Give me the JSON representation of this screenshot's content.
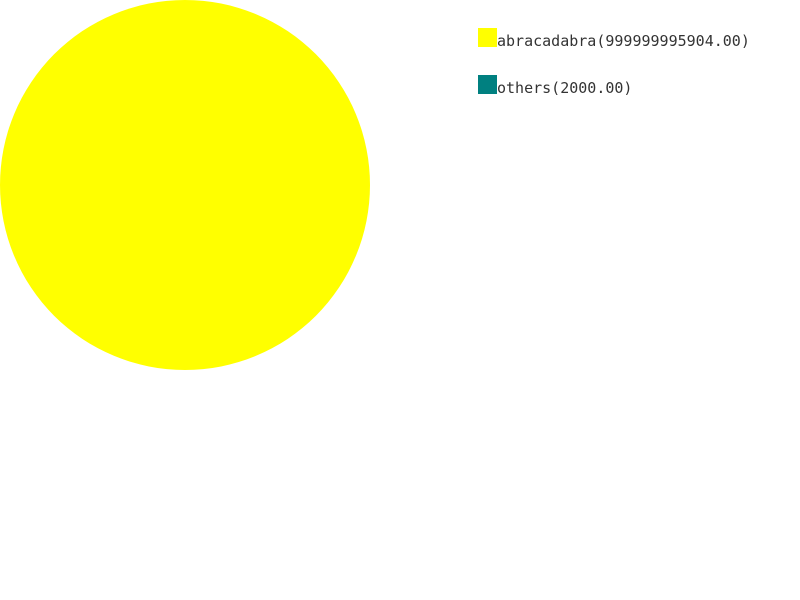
{
  "chart_data": {
    "type": "pie",
    "title": "",
    "legend_position": "top-right",
    "slices": [
      {
        "label": "abracadabra(999999995904.00)",
        "value": 999999995904.0,
        "color": "#ffff00"
      },
      {
        "label": "others(2000.00)",
        "value": 2000.0,
        "color": "#008080"
      }
    ]
  }
}
